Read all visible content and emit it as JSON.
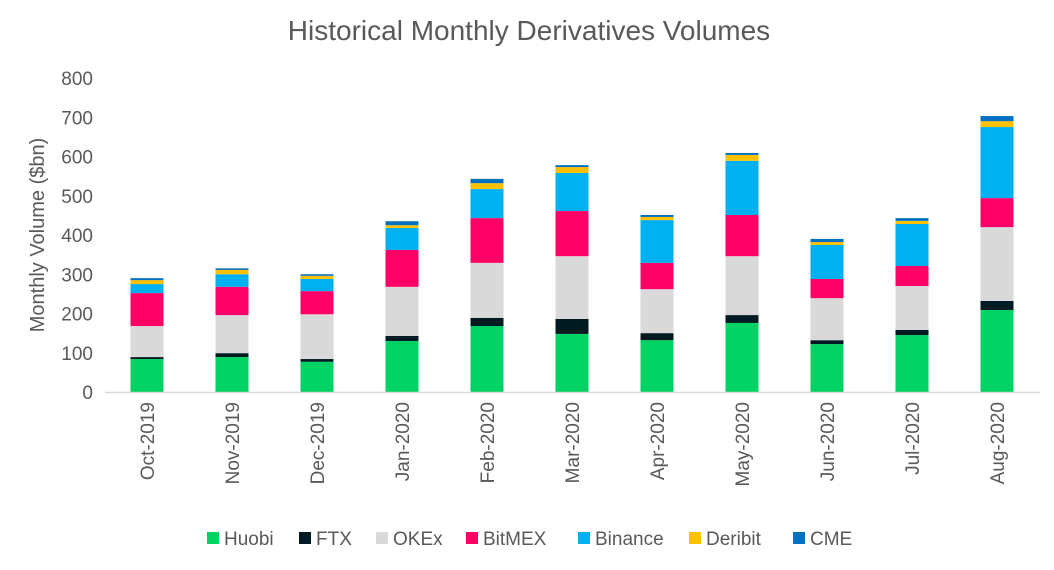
{
  "chart_data": {
    "type": "bar",
    "stacked": true,
    "title": "Historical Monthly Derivatives Volumes",
    "xlabel": "",
    "ylabel": "Monthly Volume ($bn)",
    "ylim": [
      0,
      800
    ],
    "yticks": [
      0,
      100,
      200,
      300,
      400,
      500,
      600,
      700,
      800
    ],
    "grid": false,
    "legend_position": "bottom",
    "categories": [
      "Oct-2019",
      "Nov-2019",
      "Dec-2019",
      "Jan-2020",
      "Feb-2020",
      "Mar-2020",
      "Apr-2020",
      "May-2020",
      "Jun-2020",
      "Jul-2020",
      "Aug-2020"
    ],
    "series": [
      {
        "name": "Huobi",
        "color": "#00D364",
        "values": [
          84,
          89,
          77,
          130,
          168,
          148,
          132,
          176,
          122,
          145,
          209
        ]
      },
      {
        "name": "FTX",
        "color": "#001A22",
        "values": [
          5,
          10,
          7,
          13,
          21,
          38,
          18,
          20,
          10,
          13,
          23
        ]
      },
      {
        "name": "OKEx",
        "color": "#D9D9D9",
        "values": [
          79,
          97,
          114,
          125,
          140,
          160,
          112,
          150,
          107,
          112,
          188
        ]
      },
      {
        "name": "BitMEX",
        "color": "#FF0066",
        "values": [
          84,
          72,
          59,
          94,
          114,
          115,
          67,
          105,
          49,
          51,
          74
        ]
      },
      {
        "name": "Binance",
        "color": "#00B0F0",
        "values": [
          23,
          32,
          31,
          56,
          74,
          97,
          109,
          138,
          87,
          107,
          181
        ]
      },
      {
        "name": "Deribit",
        "color": "#FFC000",
        "values": [
          10,
          11,
          8,
          7,
          15,
          15,
          8,
          15,
          7,
          8,
          15
        ]
      },
      {
        "name": "CME",
        "color": "#0070C0",
        "values": [
          5,
          4,
          4,
          10,
          11,
          5,
          5,
          5,
          8,
          7,
          13
        ]
      }
    ]
  }
}
